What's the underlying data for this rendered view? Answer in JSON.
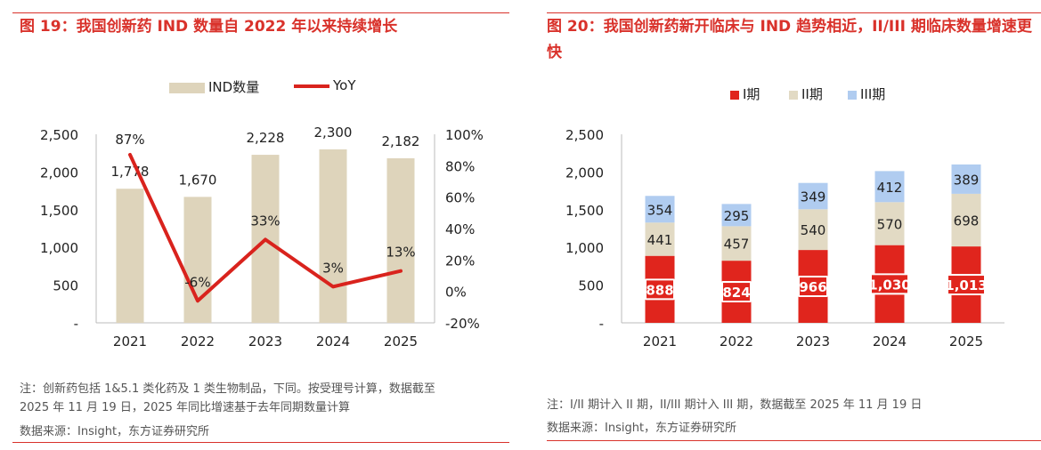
{
  "left": {
    "title": "图 19：我国创新药 IND 数量自 2022 年以来持续增长",
    "legend": {
      "bar": "IND数量",
      "line": "YoY"
    },
    "note_line1": "注：创新药包括 1&5.1 类化药及 1 类生物制品，下同。按受理号计算，数据截至",
    "note_line2": "2025 年 11 月 19 日，2025 年同比增速基于去年同期数量计算",
    "source": "数据来源：Insight，东方证券研究所"
  },
  "right": {
    "title": "图 20：我国创新药新开临床与 IND 趋势相近，II/III 期临床数量增速更快",
    "legend": [
      "I期",
      "II期",
      "III期"
    ],
    "note": "注：I/II 期计入 II 期，II/III 期计入 III 期，数据截至 2025 年 11 月 19 日",
    "source": "数据来源：Insight，东方证券研究所"
  },
  "chart_data": [
    {
      "type": "bar",
      "title": "图 19：我国创新药 IND 数量自 2022 年以来持续增长",
      "categories": [
        "2021",
        "2022",
        "2023",
        "2024",
        "2025"
      ],
      "series": [
        {
          "name": "IND数量",
          "type": "bar",
          "axis": "left",
          "color": "#ded4bb",
          "values": [
            1778,
            1670,
            2228,
            2300,
            2182
          ],
          "labels": [
            "1,778",
            "1,670",
            "2,228",
            "2,300",
            "2,182"
          ]
        },
        {
          "name": "YoY",
          "type": "line",
          "axis": "right",
          "color": "#d9231d",
          "values": [
            87,
            -6,
            33,
            3,
            13
          ],
          "labels": [
            "87%",
            "-6%",
            "33%",
            "3%",
            "13%"
          ]
        }
      ],
      "ylim": [
        0,
        2500
      ],
      "yticks": [
        "-",
        "500",
        "1,000",
        "1,500",
        "2,000",
        "2,500"
      ],
      "y2lim": [
        -20,
        100
      ],
      "y2ticks": [
        "-20%",
        "0%",
        "20%",
        "40%",
        "60%",
        "80%",
        "100%"
      ],
      "legend_position": "top-center"
    },
    {
      "type": "bar",
      "stacked": true,
      "title": "图 20：我国创新药新开临床与 IND 趋势相近，II/III 期临床数量增速更快",
      "categories": [
        "2021",
        "2022",
        "2023",
        "2024",
        "2025"
      ],
      "series": [
        {
          "name": "I期",
          "color": "#e0251d",
          "values": [
            888,
            824,
            966,
            1030,
            1013
          ],
          "labels": [
            "888",
            "824",
            "966",
            "1,030",
            "1,013"
          ]
        },
        {
          "name": "II期",
          "color": "#e2dac4",
          "values": [
            441,
            457,
            540,
            570,
            698
          ],
          "labels": [
            "441",
            "457",
            "540",
            "570",
            "698"
          ]
        },
        {
          "name": "III期",
          "color": "#b0ccf0",
          "values": [
            354,
            295,
            349,
            412,
            389
          ],
          "labels": [
            "354",
            "295",
            "349",
            "412",
            "389"
          ]
        }
      ],
      "ylim": [
        0,
        2500
      ],
      "yticks": [
        "-",
        "500",
        "1,000",
        "1,500",
        "2,000",
        "2,500"
      ],
      "legend_position": "top-center"
    }
  ]
}
